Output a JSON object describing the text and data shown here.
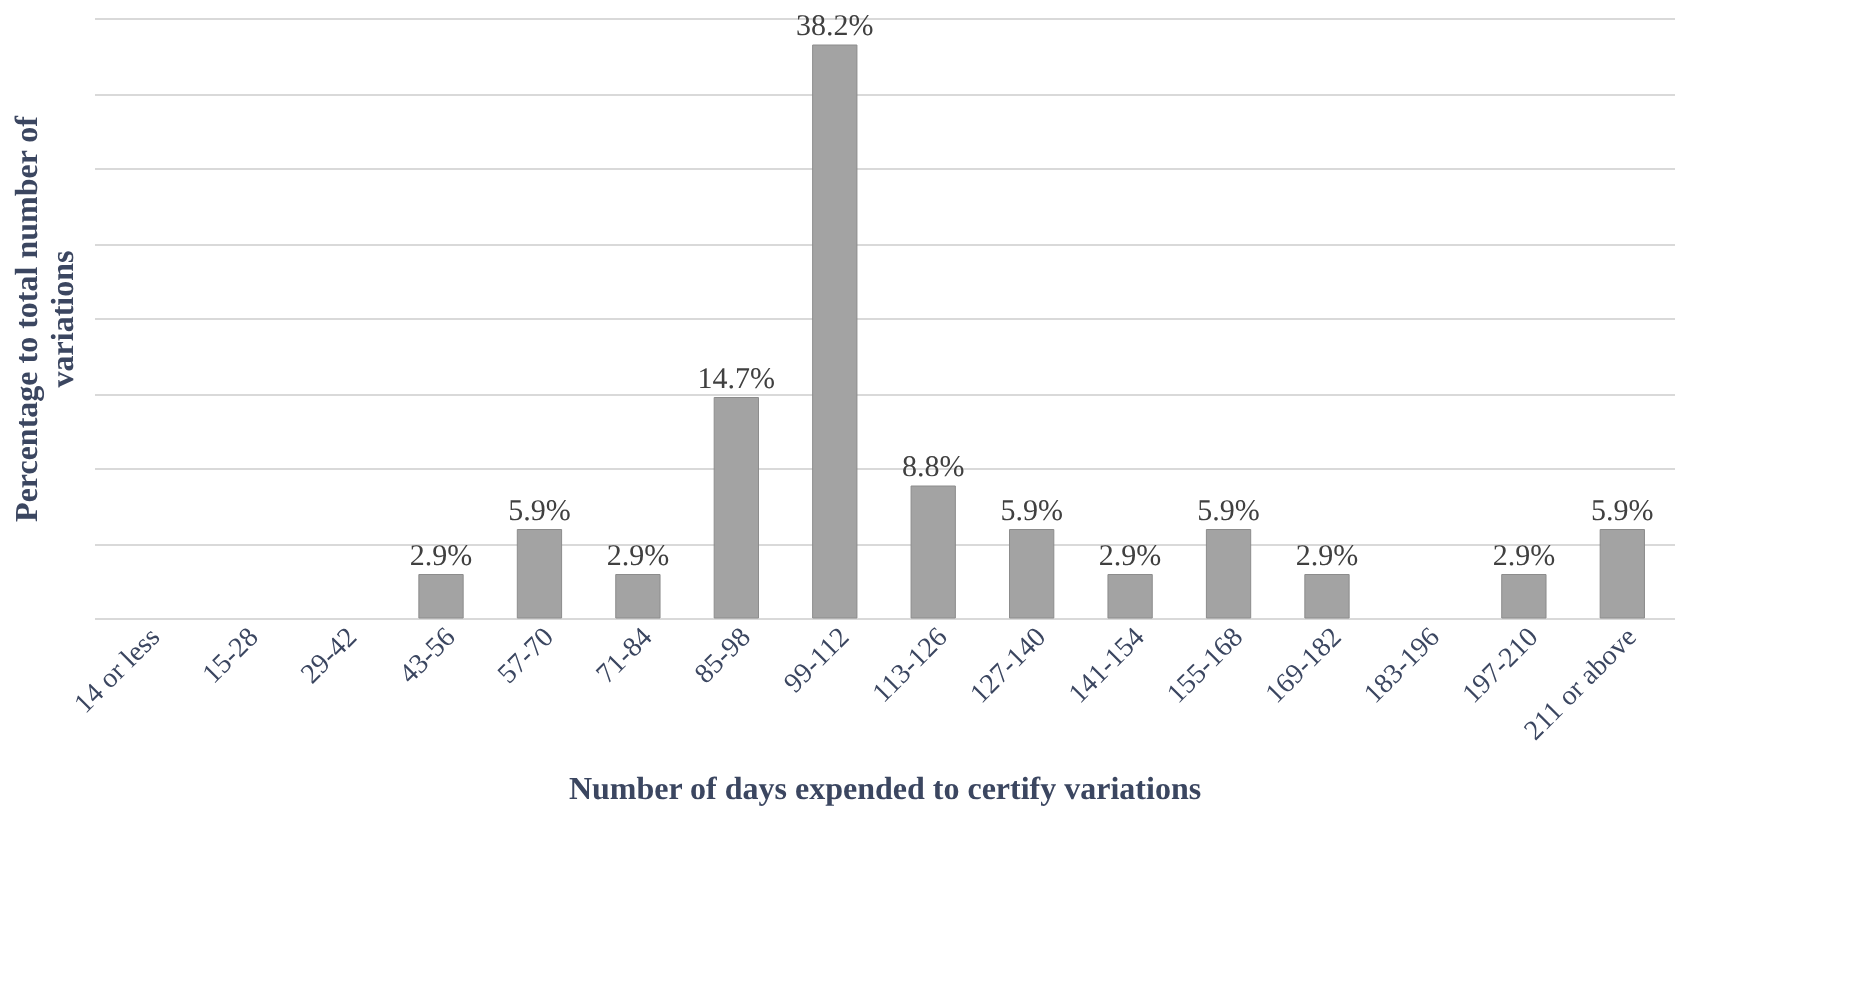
{
  "chart_data": {
    "type": "bar",
    "xlabel": "Number of days expended to certify variations",
    "ylabel": "Percentage to total number of variations",
    "categories": [
      "14 or less",
      "15-28",
      "29-42",
      "43-56",
      "57-70",
      "71-84",
      "85-98",
      "99-112",
      "113-126",
      "127-140",
      "141-154",
      "155-168",
      "169-182",
      "183-196",
      "197-210",
      "211 or above"
    ],
    "values": [
      null,
      null,
      null,
      2.9,
      5.9,
      2.9,
      14.7,
      38.2,
      8.8,
      5.9,
      2.9,
      5.9,
      2.9,
      null,
      2.9,
      5.9
    ],
    "value_labels": [
      null,
      null,
      null,
      "2.9%",
      "5.9%",
      "2.9%",
      "14.7%",
      "38.2%",
      "8.8%",
      "5.9%",
      "2.9%",
      "5.9%",
      "2.9%",
      null,
      "2.9%",
      "5.9%"
    ],
    "color": "#a3a3a3",
    "grid": "y",
    "tick_labels": "x"
  }
}
